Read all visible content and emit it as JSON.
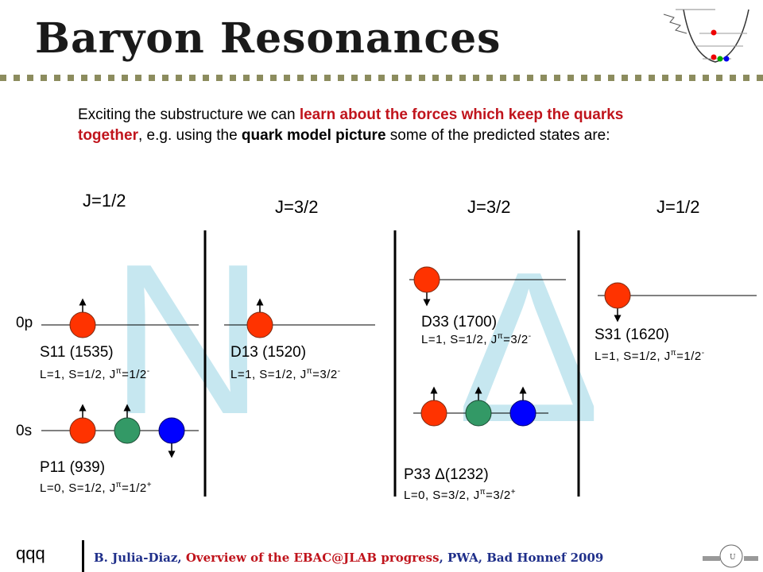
{
  "title": "Baryon Resonances",
  "intro": {
    "part1": "Exciting the substructure we can ",
    "highlight1": "learn about the forces which keep the quarks together",
    "part2": ", e.g. using the ",
    "highlight2": "quark model picture",
    "part3": " some of the predicted states are:"
  },
  "columns": [
    "J=1/2",
    "J=3/2",
    "J=3/2",
    "J=1/2"
  ],
  "background_letters": [
    "N",
    "Δ"
  ],
  "levels": {
    "p": "0p",
    "s": "0s"
  },
  "states": {
    "s11": {
      "name": "S11 (1535)",
      "qn": "L=1, S=1/2, J",
      "pi": "π",
      "j": "=1/2",
      "parity": "-"
    },
    "d13": {
      "name": "D13 (1520)",
      "qn": "L=1, S=1/2, J",
      "pi": "π",
      "j": "=3/2",
      "parity": "-"
    },
    "p11": {
      "name": "P11 (939)",
      "qn": "L=0, S=1/2, J",
      "pi": "π",
      "j": "=1/2",
      "parity": "+"
    },
    "d33": {
      "name": "D33 (1700)",
      "qn": "L=1, S=1/2, J",
      "pi": "π",
      "j": "=3/2",
      "parity": "-"
    },
    "p33": {
      "name": "P33 Δ(1232)",
      "qn": "L=0, S=3/2, J",
      "pi": "π",
      "j": "=3/2",
      "parity": "+"
    },
    "s31": {
      "name": "S31 (1620)",
      "qn": "L=1, S=1/2, J",
      "pi": "π",
      "j": "=1/2",
      "parity": "-"
    }
  },
  "colors": {
    "red_quark": "#ff3300",
    "green_quark": "#339966",
    "blue_quark": "#0000ff",
    "accent_red": "#c0141c",
    "watermark": "#c0e4ee"
  },
  "footer": {
    "left": "qqq",
    "author": "B. Julia-Diaz, ",
    "talk": "Overview of the EBAC@JLAB progress",
    "venue": ",  PWA, Bad Honnef 2009"
  }
}
